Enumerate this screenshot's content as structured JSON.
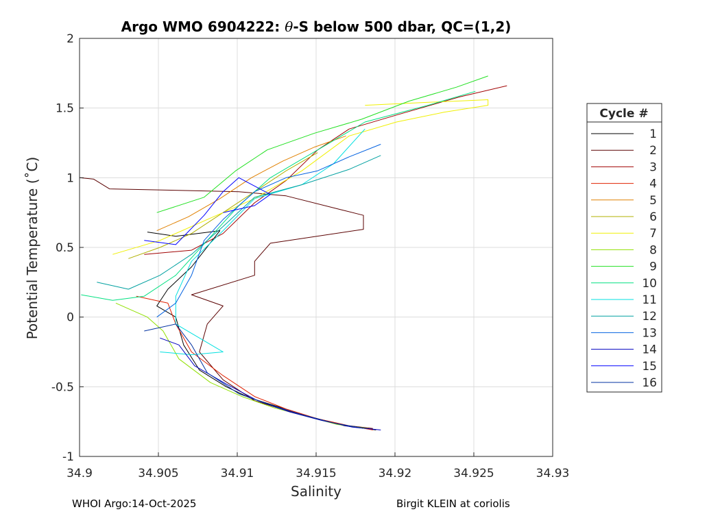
{
  "chart_data": {
    "type": "line",
    "title_prefix": "Argo WMO 6904222: ",
    "title_symbol": "θ",
    "title_suffix": "-S below 500 dbar,  QC=(1,2)",
    "xlabel": "Salinity",
    "ylabel": "Potential Temperature (˚C)",
    "xlim": [
      34.9,
      34.93
    ],
    "ylim": [
      -1,
      2
    ],
    "xticks": [
      "34.9",
      "34.905",
      "34.91",
      "34.915",
      "34.92",
      "34.925",
      "34.93"
    ],
    "yticks": [
      "2",
      "1.5",
      "1",
      "0.5",
      "0",
      "-0.5",
      "-1"
    ],
    "grid": true,
    "legend": {
      "title": "Cycle #",
      "placement": "right-outside"
    },
    "series": [
      {
        "name": "1",
        "color": "#000000",
        "points": [
          [
            34.9043,
            0.61
          ],
          [
            34.9061,
            0.58
          ],
          [
            34.9089,
            0.62
          ],
          [
            34.9071,
            0.36
          ],
          [
            34.9056,
            0.2
          ],
          [
            34.9049,
            0.08
          ],
          [
            34.9061,
            0.0
          ],
          [
            34.9066,
            -0.2
          ],
          [
            34.9076,
            -0.38
          ],
          [
            34.9093,
            -0.5
          ],
          [
            34.9108,
            -0.58
          ],
          [
            34.9128,
            -0.65
          ],
          [
            34.9148,
            -0.72
          ],
          [
            34.9168,
            -0.78
          ],
          [
            34.9188,
            -0.81
          ]
        ]
      },
      {
        "name": "2",
        "color": "#5a0000",
        "points": [
          [
            34.9,
            1.0
          ],
          [
            34.9009,
            0.99
          ],
          [
            34.9019,
            0.92
          ],
          [
            34.9101,
            0.9
          ],
          [
            34.9131,
            0.87
          ],
          [
            34.9166,
            0.77
          ],
          [
            34.918,
            0.73
          ],
          [
            34.918,
            0.63
          ],
          [
            34.9121,
            0.53
          ],
          [
            34.9111,
            0.4
          ],
          [
            34.9111,
            0.3
          ],
          [
            34.9071,
            0.16
          ],
          [
            34.9091,
            0.08
          ],
          [
            34.9081,
            -0.05
          ],
          [
            34.9076,
            -0.25
          ],
          [
            34.9091,
            -0.45
          ],
          [
            34.9111,
            -0.6
          ],
          [
            34.9131,
            -0.67
          ],
          [
            34.9151,
            -0.73
          ],
          [
            34.9171,
            -0.78
          ],
          [
            34.9186,
            -0.8
          ]
        ]
      },
      {
        "name": "3",
        "color": "#a00000",
        "points": [
          [
            34.9041,
            0.45
          ],
          [
            34.9071,
            0.48
          ],
          [
            34.9091,
            0.6
          ],
          [
            34.9111,
            0.82
          ],
          [
            34.9131,
            0.98
          ],
          [
            34.9151,
            1.2
          ],
          [
            34.9171,
            1.35
          ],
          [
            34.9201,
            1.45
          ],
          [
            34.9241,
            1.58
          ],
          [
            34.9271,
            1.66
          ]
        ]
      },
      {
        "name": "4",
        "color": "#e02000",
        "points": [
          [
            34.9036,
            0.15
          ],
          [
            34.9056,
            0.1
          ],
          [
            34.9061,
            -0.05
          ],
          [
            34.9071,
            -0.25
          ],
          [
            34.9091,
            -0.42
          ],
          [
            34.9111,
            -0.57
          ],
          [
            34.9131,
            -0.66
          ],
          [
            34.9151,
            -0.73
          ],
          [
            34.9171,
            -0.78
          ],
          [
            34.9186,
            -0.81
          ]
        ]
      },
      {
        "name": "5",
        "color": "#e08000",
        "points": [
          [
            34.9049,
            0.62
          ],
          [
            34.9069,
            0.72
          ],
          [
            34.9089,
            0.85
          ],
          [
            34.9109,
            1.0
          ],
          [
            34.9129,
            1.12
          ],
          [
            34.9149,
            1.22
          ],
          [
            34.9169,
            1.3
          ]
        ]
      },
      {
        "name": "6",
        "color": "#b0b000",
        "points": [
          [
            34.9031,
            0.42
          ],
          [
            34.9051,
            0.5
          ],
          [
            34.9071,
            0.6
          ],
          [
            34.9091,
            0.75
          ],
          [
            34.9111,
            0.9
          ],
          [
            34.9131,
            1.05
          ],
          [
            34.9151,
            1.18
          ]
        ]
      },
      {
        "name": "7",
        "color": "#f0f000",
        "points": [
          [
            34.9021,
            0.45
          ],
          [
            34.9051,
            0.55
          ],
          [
            34.9081,
            0.7
          ],
          [
            34.9111,
            0.85
          ],
          [
            34.9141,
            1.05
          ],
          [
            34.9171,
            1.3
          ],
          [
            34.9201,
            1.4
          ],
          [
            34.9231,
            1.47
          ],
          [
            34.9259,
            1.52
          ],
          [
            34.9259,
            1.56
          ],
          [
            34.9219,
            1.54
          ],
          [
            34.9181,
            1.52
          ]
        ]
      },
      {
        "name": "8",
        "color": "#90e000",
        "points": [
          [
            34.9023,
            0.1
          ],
          [
            34.9043,
            0.0
          ],
          [
            34.9053,
            -0.1
          ],
          [
            34.9063,
            -0.3
          ],
          [
            34.9083,
            -0.47
          ],
          [
            34.9103,
            -0.57
          ],
          [
            34.9123,
            -0.65
          ],
          [
            34.9143,
            -0.71
          ],
          [
            34.9163,
            -0.77
          ],
          [
            34.9183,
            -0.8
          ]
        ]
      },
      {
        "name": "9",
        "color": "#20e020",
        "points": [
          [
            34.9049,
            0.75
          ],
          [
            34.9079,
            0.86
          ],
          [
            34.9099,
            1.05
          ],
          [
            34.9119,
            1.2
          ],
          [
            34.9149,
            1.32
          ],
          [
            34.9179,
            1.42
          ],
          [
            34.9209,
            1.55
          ],
          [
            34.9239,
            1.65
          ],
          [
            34.9259,
            1.73
          ]
        ]
      },
      {
        "name": "10",
        "color": "#00e080",
        "points": [
          [
            34.9001,
            0.16
          ],
          [
            34.9021,
            0.12
          ],
          [
            34.9041,
            0.15
          ],
          [
            34.9061,
            0.3
          ],
          [
            34.9081,
            0.55
          ],
          [
            34.9101,
            0.8
          ],
          [
            34.9121,
            1.0
          ],
          [
            34.9151,
            1.2
          ],
          [
            34.9181,
            1.4
          ],
          [
            34.9221,
            1.52
          ],
          [
            34.9251,
            1.62
          ]
        ]
      },
      {
        "name": "11",
        "color": "#00e0e0",
        "points": [
          [
            34.9051,
            -0.25
          ],
          [
            34.9071,
            -0.27
          ],
          [
            34.9091,
            -0.25
          ],
          [
            34.9061,
            -0.05
          ],
          [
            34.9061,
            0.15
          ],
          [
            34.9071,
            0.4
          ],
          [
            34.9091,
            0.62
          ],
          [
            34.9111,
            0.85
          ],
          [
            34.9141,
            0.95
          ],
          [
            34.9161,
            1.1
          ],
          [
            34.9181,
            1.35
          ]
        ]
      },
      {
        "name": "12",
        "color": "#00a0a0",
        "points": [
          [
            34.9011,
            0.25
          ],
          [
            34.9031,
            0.2
          ],
          [
            34.9051,
            0.3
          ],
          [
            34.9071,
            0.45
          ],
          [
            34.9091,
            0.65
          ],
          [
            34.9111,
            0.86
          ],
          [
            34.9141,
            0.95
          ],
          [
            34.9171,
            1.06
          ],
          [
            34.9191,
            1.16
          ]
        ]
      },
      {
        "name": "13",
        "color": "#0060e0",
        "points": [
          [
            34.9049,
            0.0
          ],
          [
            34.9061,
            0.1
          ],
          [
            34.9071,
            0.3
          ],
          [
            34.9079,
            0.55
          ],
          [
            34.9091,
            0.7
          ],
          [
            34.9111,
            0.9
          ],
          [
            34.9131,
            1.0
          ],
          [
            34.9151,
            1.05
          ],
          [
            34.9171,
            1.15
          ],
          [
            34.9191,
            1.24
          ]
        ]
      },
      {
        "name": "14",
        "color": "#0000c0",
        "points": [
          [
            34.9051,
            -0.15
          ],
          [
            34.9063,
            -0.2
          ],
          [
            34.9073,
            -0.35
          ],
          [
            34.9093,
            -0.48
          ],
          [
            34.9113,
            -0.6
          ],
          [
            34.9133,
            -0.68
          ],
          [
            34.9153,
            -0.74
          ],
          [
            34.9173,
            -0.79
          ],
          [
            34.9191,
            -0.81
          ]
        ]
      },
      {
        "name": "15",
        "color": "#0000ff",
        "points": [
          [
            34.9041,
            0.55
          ],
          [
            34.9061,
            0.52
          ],
          [
            34.9079,
            0.73
          ],
          [
            34.9091,
            0.9
          ],
          [
            34.9101,
            1.0
          ],
          [
            34.9121,
            0.88
          ],
          [
            34.9111,
            0.8
          ],
          [
            34.9091,
            0.75
          ]
        ]
      },
      {
        "name": "16",
        "color": "#0030a0",
        "points": [
          [
            34.9041,
            -0.1
          ],
          [
            34.9061,
            -0.05
          ],
          [
            34.9071,
            -0.2
          ],
          [
            34.9081,
            -0.4
          ],
          [
            34.9101,
            -0.55
          ],
          [
            34.9121,
            -0.63
          ],
          [
            34.9141,
            -0.7
          ],
          [
            34.9161,
            -0.76
          ],
          [
            34.9181,
            -0.8
          ]
        ]
      }
    ]
  },
  "footer": {
    "left": "WHOI Argo:14-Oct-2025",
    "right": "Birgit KLEIN at coriolis"
  }
}
